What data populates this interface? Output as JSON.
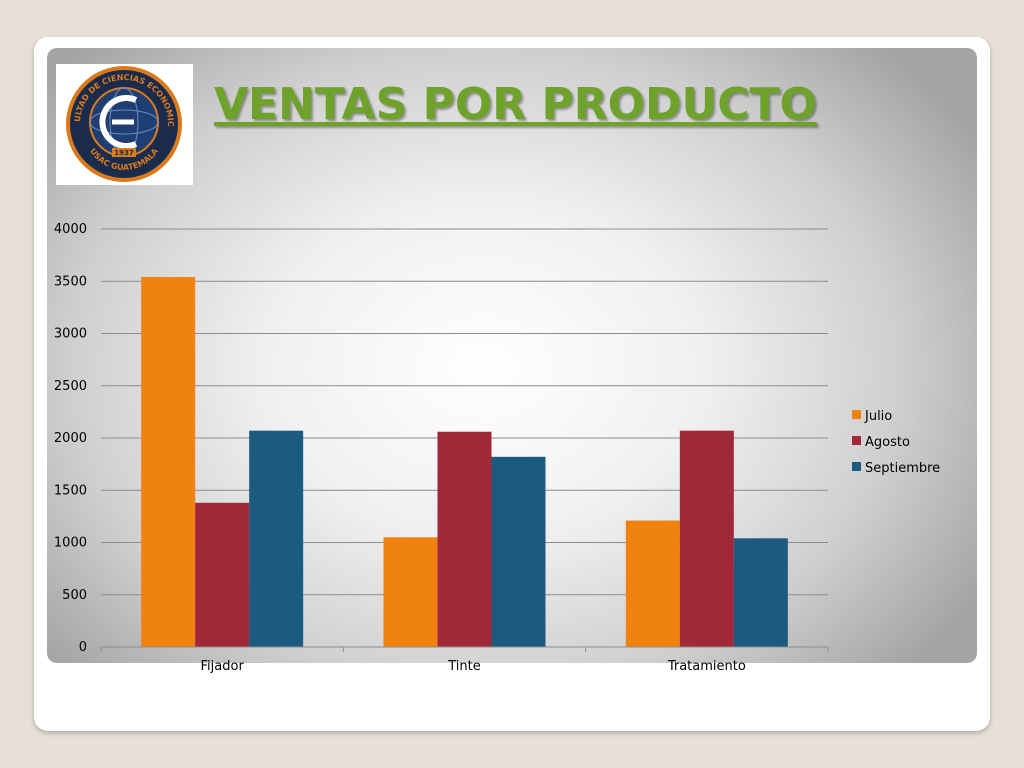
{
  "slide": {
    "title": "VENTAS POR PRODUCTO",
    "title_color": "#6ea22a"
  },
  "logo": {
    "icon": "university-seal-icon",
    "ring_color": "#1a2b4c",
    "accent_color": "#d97a1d",
    "ring_text": "FACULTAD DE CIENCIAS ECONOMICAS",
    "bottom_text": "USAC GUATEMALA",
    "year": "1937"
  },
  "chart_data": {
    "type": "bar",
    "categories": [
      "Fijador",
      "Tinte",
      "Tratamiento"
    ],
    "series": [
      {
        "name": "Julio",
        "color": "#f0820f",
        "values": [
          3540,
          1050,
          1210
        ]
      },
      {
        "name": "Agosto",
        "color": "#a02838",
        "values": [
          1380,
          2060,
          2070
        ]
      },
      {
        "name": "Septiembre",
        "color": "#1c5a7e",
        "values": [
          2070,
          1820,
          1040
        ]
      }
    ],
    "ylim": [
      0,
      4000
    ],
    "yticks": [
      0,
      500,
      1000,
      1500,
      2000,
      2500,
      3000,
      3500,
      4000
    ],
    "grid": true,
    "legend_position": "right"
  }
}
